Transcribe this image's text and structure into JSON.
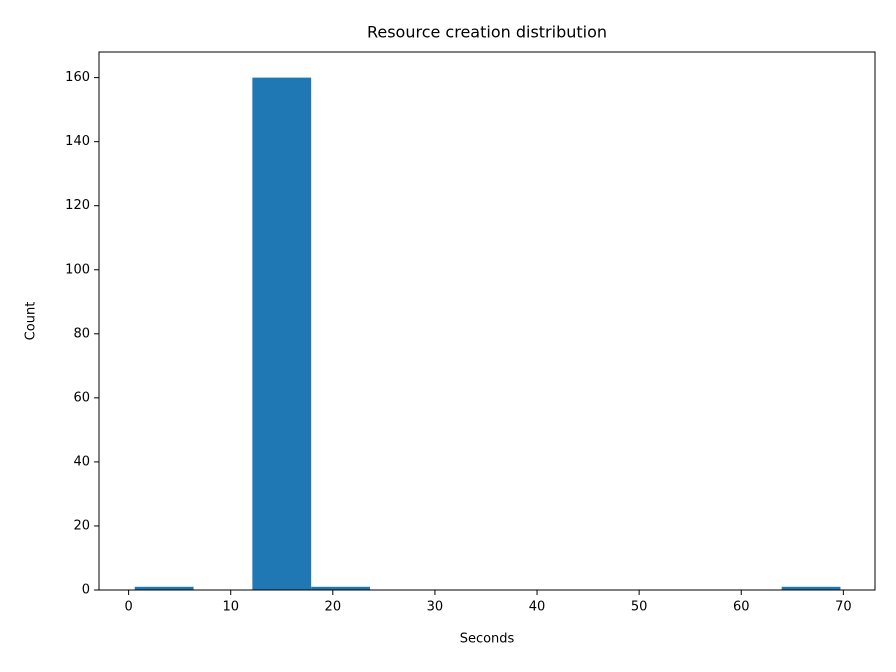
{
  "chart_data": {
    "type": "histogram",
    "title": "Resource creation distribution",
    "x_label": "Seconds",
    "y_label": "Count",
    "bins": [
      0.6,
      6.36,
      12.12,
      17.88,
      23.64,
      29.4,
      35.16,
      40.92,
      46.68,
      52.44,
      58.2,
      63.96,
      69.72
    ],
    "values": [
      1,
      0,
      160,
      1,
      0,
      0,
      0,
      0,
      0,
      0,
      0,
      1
    ],
    "color": "#1f77b4",
    "xlim": [
      -2.9,
      73.1
    ],
    "xticks": [
      0,
      10,
      20,
      30,
      40,
      50,
      60,
      70
    ],
    "ylim": [
      0,
      168
    ],
    "yticks": [
      0,
      20,
      40,
      60,
      80,
      100,
      120,
      140,
      160
    ],
    "grid": false
  }
}
